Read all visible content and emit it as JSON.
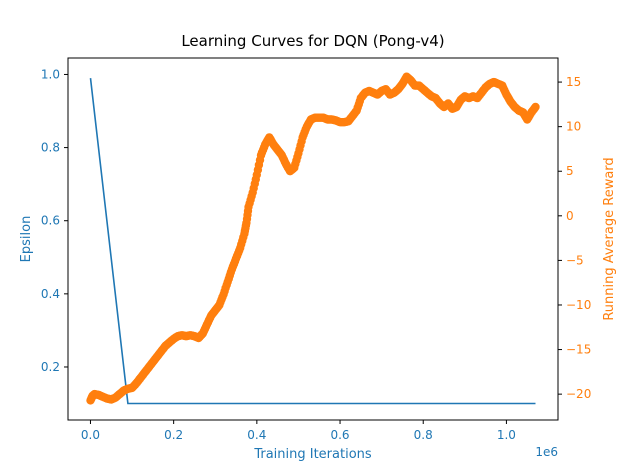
{
  "chart_data": {
    "type": "line",
    "title": "Learning Curves for DQN (Pong-v4)",
    "xlabel": "Training Iterations",
    "x_offset_text": "1e6",
    "xlim": [
      -0.054,
      1.124
    ],
    "x_ticks": [
      {
        "value": 0.0,
        "label": "0.0"
      },
      {
        "value": 0.2,
        "label": "0.2"
      },
      {
        "value": 0.4,
        "label": "0.4"
      },
      {
        "value": 0.6,
        "label": "0.6"
      },
      {
        "value": 0.8,
        "label": "0.8"
      },
      {
        "value": 1.0,
        "label": "1.0"
      }
    ],
    "y_left": {
      "label": "Epsilon",
      "color": "#1f77b4",
      "lim": [
        0.055,
        1.045
      ],
      "ticks": [
        {
          "value": 0.2,
          "label": "0.2"
        },
        {
          "value": 0.4,
          "label": "0.4"
        },
        {
          "value": 0.6,
          "label": "0.6"
        },
        {
          "value": 0.8,
          "label": "0.8"
        },
        {
          "value": 1.0,
          "label": "1.0"
        }
      ]
    },
    "y_right": {
      "label": "Running Average Reward",
      "color": "#ff7f0e",
      "lim": [
        -22.9,
        17.7
      ],
      "ticks": [
        {
          "value": -20,
          "label": "−20"
        },
        {
          "value": -15,
          "label": "−15"
        },
        {
          "value": -10,
          "label": "−10"
        },
        {
          "value": -5,
          "label": "−5"
        },
        {
          "value": 0,
          "label": "0"
        },
        {
          "value": 5,
          "label": "5"
        },
        {
          "value": 10,
          "label": "10"
        },
        {
          "value": 15,
          "label": "15"
        }
      ]
    },
    "series": [
      {
        "axis": "left",
        "style": "line",
        "color": "#1f77b4",
        "x": [
          0.0,
          0.09,
          1.07
        ],
        "y": [
          0.99,
          0.1,
          0.1
        ]
      },
      {
        "axis": "right",
        "style": "scatter",
        "color": "#ff7f0e",
        "points": [
          [
            0.0,
            -20.7
          ],
          [
            0.005,
            -20.2
          ],
          [
            0.01,
            -20.0
          ],
          [
            0.02,
            -20.1
          ],
          [
            0.03,
            -20.3
          ],
          [
            0.04,
            -20.5
          ],
          [
            0.05,
            -20.6
          ],
          [
            0.06,
            -20.4
          ],
          [
            0.07,
            -20.0
          ],
          [
            0.08,
            -19.6
          ],
          [
            0.09,
            -19.4
          ],
          [
            0.1,
            -19.3
          ],
          [
            0.11,
            -18.8
          ],
          [
            0.12,
            -18.2
          ],
          [
            0.13,
            -17.6
          ],
          [
            0.14,
            -17.0
          ],
          [
            0.15,
            -16.4
          ],
          [
            0.16,
            -15.8
          ],
          [
            0.17,
            -15.2
          ],
          [
            0.18,
            -14.6
          ],
          [
            0.19,
            -14.2
          ],
          [
            0.2,
            -13.8
          ],
          [
            0.21,
            -13.5
          ],
          [
            0.22,
            -13.4
          ],
          [
            0.23,
            -13.5
          ],
          [
            0.24,
            -13.4
          ],
          [
            0.25,
            -13.5
          ],
          [
            0.26,
            -13.7
          ],
          [
            0.27,
            -13.2
          ],
          [
            0.28,
            -12.2
          ],
          [
            0.29,
            -11.2
          ],
          [
            0.3,
            -10.6
          ],
          [
            0.31,
            -10.0
          ],
          [
            0.32,
            -8.8
          ],
          [
            0.33,
            -7.4
          ],
          [
            0.34,
            -6.0
          ],
          [
            0.35,
            -4.8
          ],
          [
            0.36,
            -3.6
          ],
          [
            0.37,
            -2.0
          ],
          [
            0.375,
            -0.8
          ],
          [
            0.38,
            1.0
          ],
          [
            0.39,
            2.6
          ],
          [
            0.4,
            4.6
          ],
          [
            0.41,
            6.8
          ],
          [
            0.42,
            8.0
          ],
          [
            0.43,
            8.8
          ],
          [
            0.44,
            8.0
          ],
          [
            0.45,
            7.4
          ],
          [
            0.46,
            6.8
          ],
          [
            0.47,
            5.8
          ],
          [
            0.48,
            5.0
          ],
          [
            0.49,
            5.4
          ],
          [
            0.5,
            7.0
          ],
          [
            0.51,
            8.8
          ],
          [
            0.52,
            10.0
          ],
          [
            0.53,
            10.8
          ],
          [
            0.54,
            11.0
          ],
          [
            0.55,
            11.0
          ],
          [
            0.56,
            11.0
          ],
          [
            0.57,
            10.8
          ],
          [
            0.58,
            10.8
          ],
          [
            0.59,
            10.7
          ],
          [
            0.6,
            10.5
          ],
          [
            0.61,
            10.5
          ],
          [
            0.62,
            10.6
          ],
          [
            0.63,
            11.2
          ],
          [
            0.64,
            11.8
          ],
          [
            0.65,
            13.2
          ],
          [
            0.66,
            13.8
          ],
          [
            0.67,
            14.0
          ],
          [
            0.68,
            13.8
          ],
          [
            0.69,
            13.6
          ],
          [
            0.7,
            14.0
          ],
          [
            0.71,
            14.2
          ],
          [
            0.72,
            13.6
          ],
          [
            0.73,
            13.8
          ],
          [
            0.74,
            14.2
          ],
          [
            0.75,
            14.8
          ],
          [
            0.76,
            15.6
          ],
          [
            0.77,
            15.2
          ],
          [
            0.78,
            14.6
          ],
          [
            0.79,
            14.6
          ],
          [
            0.8,
            14.2
          ],
          [
            0.81,
            13.8
          ],
          [
            0.82,
            13.4
          ],
          [
            0.83,
            13.2
          ],
          [
            0.84,
            12.6
          ],
          [
            0.85,
            12.2
          ],
          [
            0.86,
            12.6
          ],
          [
            0.87,
            12.0
          ],
          [
            0.88,
            12.2
          ],
          [
            0.89,
            13.0
          ],
          [
            0.9,
            13.4
          ],
          [
            0.91,
            13.2
          ],
          [
            0.92,
            13.4
          ],
          [
            0.93,
            13.2
          ],
          [
            0.94,
            13.8
          ],
          [
            0.95,
            14.4
          ],
          [
            0.96,
            14.8
          ],
          [
            0.97,
            15.0
          ],
          [
            0.98,
            14.8
          ],
          [
            0.99,
            14.6
          ],
          [
            1.0,
            13.6
          ],
          [
            1.01,
            12.8
          ],
          [
            1.02,
            12.2
          ],
          [
            1.03,
            11.8
          ],
          [
            1.04,
            11.6
          ],
          [
            1.05,
            10.8
          ],
          [
            1.06,
            11.6
          ],
          [
            1.07,
            12.2
          ]
        ]
      }
    ]
  }
}
